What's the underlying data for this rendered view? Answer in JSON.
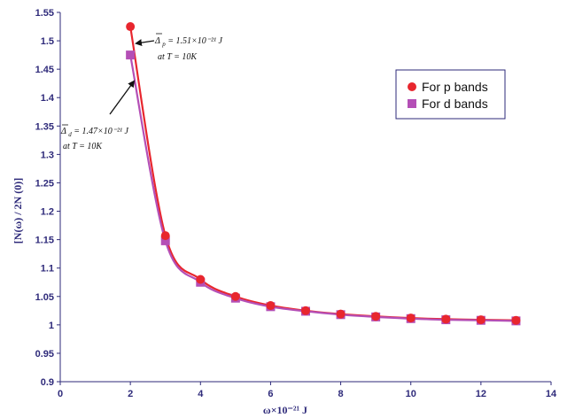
{
  "chart_data": {
    "type": "line",
    "xlabel": "ω×10⁻²¹ J",
    "ylabel": "[N(ω) / 2N (0)]",
    "xlim": [
      0,
      14
    ],
    "ylim": [
      0.9,
      1.55
    ],
    "x_ticks": [
      "0",
      "2",
      "4",
      "6",
      "8",
      "10",
      "12",
      "14"
    ],
    "y_ticks": [
      "0.9",
      "0.95",
      "1",
      "1.05",
      "1.1",
      "1.15",
      "1.2",
      "1.25",
      "1.3",
      "1.35",
      "1.4",
      "1.45",
      "1.5",
      "1.55"
    ],
    "grid": false,
    "legend_position": "right",
    "series": [
      {
        "name": "For p bands",
        "marker": "circle",
        "color": "#e8262e",
        "x": [
          2,
          3,
          4,
          5,
          6,
          7,
          8,
          9,
          10,
          11,
          12,
          13
        ],
        "y": [
          1.525,
          1.157,
          1.08,
          1.05,
          1.034,
          1.025,
          1.019,
          1.015,
          1.012,
          1.01,
          1.009,
          1.008
        ]
      },
      {
        "name": "For d bands",
        "marker": "square",
        "color": "#b44fb6",
        "x": [
          2,
          3,
          4,
          5,
          6,
          7,
          8,
          9,
          10,
          11,
          12,
          13
        ],
        "y": [
          1.475,
          1.148,
          1.075,
          1.047,
          1.032,
          1.024,
          1.018,
          1.014,
          1.011,
          1.009,
          1.008,
          1.007
        ]
      }
    ],
    "annotations": [
      {
        "id": "p",
        "delta_symbol": "Δ",
        "subscript": "p",
        "value_text": " = 1.51×10⁻²¹ J",
        "condition": "at  T = 10K"
      },
      {
        "id": "d",
        "delta_symbol": "Δ",
        "subscript": "d",
        "value_text": " = 1.47×10⁻²¹ J",
        "condition": "at  T = 10K"
      }
    ]
  }
}
